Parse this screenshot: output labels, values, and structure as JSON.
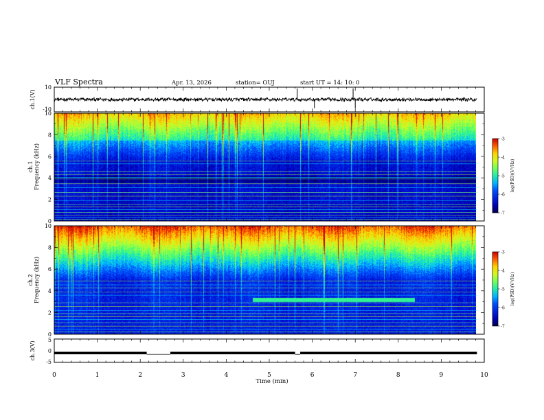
{
  "header": {
    "title": "VLF Spectra",
    "date": "Apr. 13, 2026",
    "station": "station= OUJ",
    "start": "start  UT  =   14: 10: 0"
  },
  "chart_data": [
    {
      "type": "line",
      "name": "ch1-waveform",
      "ylabel": "ch.1(V)",
      "ylim": [
        -10,
        10
      ],
      "y_ticks": [
        "10",
        "-10"
      ],
      "xlim": [
        0,
        10
      ],
      "baseline": 0,
      "spikes_min": [
        5.65,
        6.05,
        6.95,
        7.0
      ]
    },
    {
      "type": "heatmap",
      "name": "ch1-spectrogram",
      "ylabel": "Frequency (kHz)",
      "channel_label": "ch.1",
      "ylim": [
        0,
        10
      ],
      "y_ticks": [
        "0",
        "2",
        "4",
        "6",
        "8",
        "10"
      ],
      "xlim": [
        0,
        9.83
      ],
      "colorbar": {
        "label": "log(PSD)(V²/Hz)",
        "range": [
          -7,
          -3
        ],
        "ticks": [
          "-3",
          "-4",
          "-5",
          "-6",
          "-7"
        ]
      },
      "hum_lines_khz": [
        0.15,
        0.35,
        0.55,
        0.8,
        1.05,
        1.3,
        1.55,
        1.9,
        2.3,
        2.65,
        3.1,
        3.45,
        3.9,
        4.05,
        4.3,
        4.6,
        5.3,
        5.55
      ]
    },
    {
      "type": "heatmap",
      "name": "ch2-spectrogram",
      "ylabel": "Frequency (kHz)",
      "channel_label": "ch.2",
      "ylim": [
        0,
        10
      ],
      "y_ticks": [
        "0",
        "2",
        "4",
        "6",
        "8",
        "10"
      ],
      "xlim": [
        0,
        9.83
      ],
      "colorbar": {
        "label": "log(PSD)(V²/Hz)",
        "range": [
          -7,
          -3
        ],
        "ticks": [
          "-3",
          "-4",
          "-5",
          "-6",
          "-7"
        ]
      },
      "hum_lines_khz": [
        0.2,
        0.45,
        0.75,
        1.05,
        1.35,
        1.6,
        1.9,
        2.2,
        2.55,
        2.9,
        3.6,
        3.9,
        4.25,
        4.55,
        4.9
      ],
      "band_feature": {
        "t_start_min": 4.62,
        "t_end_min": 8.4,
        "f_low_khz": 3.0,
        "f_high_khz": 3.4
      }
    },
    {
      "type": "line",
      "name": "ch3-waveform",
      "ylabel": "ch.3(V)",
      "ylim": [
        -5,
        5
      ],
      "y_ticks": [
        "5",
        "0",
        "-5"
      ],
      "xlim": [
        0,
        10
      ],
      "level": -1,
      "dropouts_min": [
        [
          2.15,
          2.7
        ],
        [
          5.6,
          5.72
        ]
      ]
    },
    {
      "type": "axis",
      "name": "time-axis",
      "xlabel": "Time (min)",
      "xlim": [
        0,
        10
      ],
      "x_ticks": [
        "0",
        "1",
        "2",
        "3",
        "4",
        "5",
        "6",
        "7",
        "8",
        "9",
        "10"
      ]
    }
  ]
}
